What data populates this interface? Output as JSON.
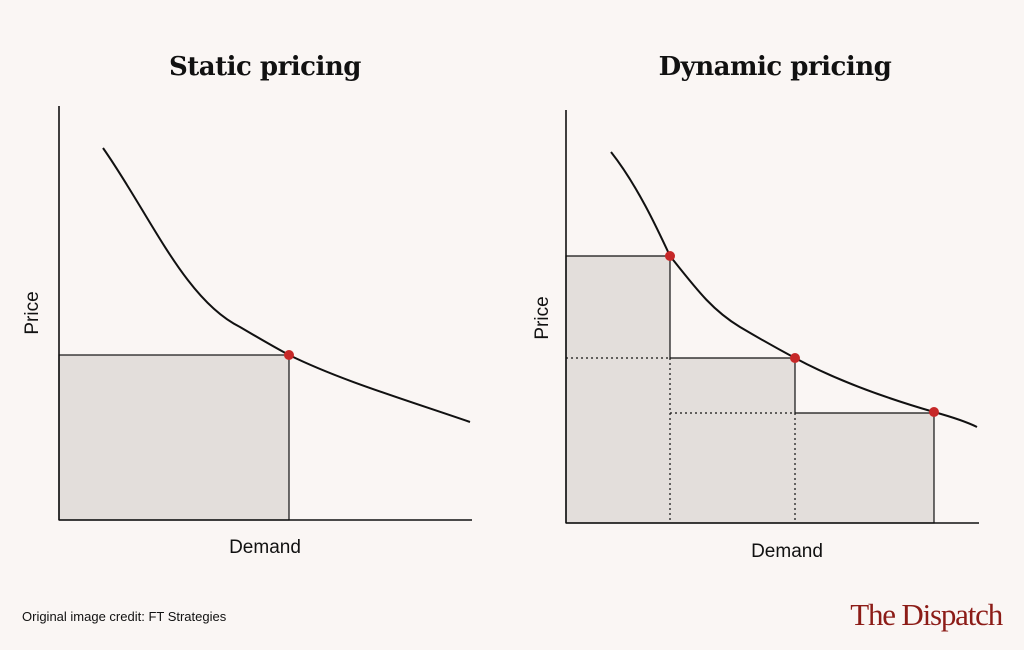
{
  "panels": [
    {
      "title": "Static pricing",
      "xlabel": "Demand",
      "ylabel": "Price",
      "price_points": 1
    },
    {
      "title": "Dynamic pricing",
      "xlabel": "Demand",
      "ylabel": "Price",
      "price_points": 3
    }
  ],
  "credit": "Original image credit: FT Strategies",
  "brand": "The Dispatch",
  "colors": {
    "curve": "#111111",
    "point": "#c62828",
    "area_fill": "#e3dedb",
    "background": "#faf6f4",
    "brand": "#8c1c17"
  }
}
